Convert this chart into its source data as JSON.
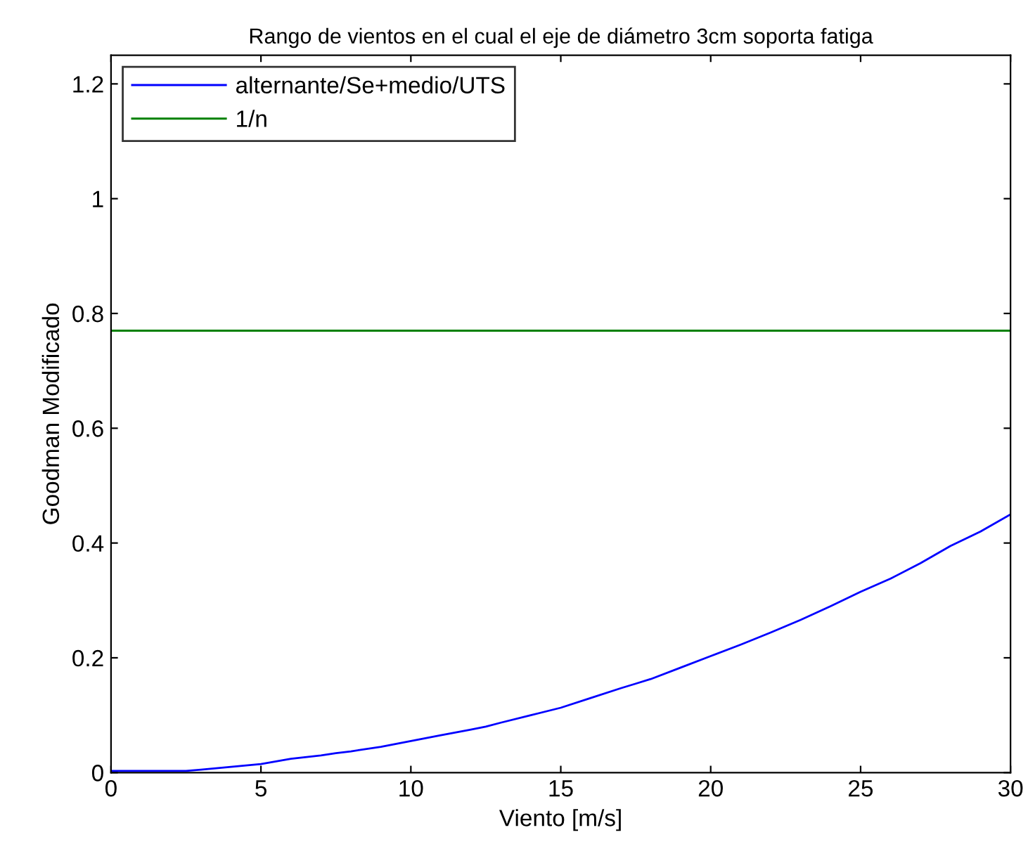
{
  "chart_data": {
    "type": "line",
    "title": "Rango de vientos en el cual el eje de diámetro 3cm soporta fatiga",
    "xlabel": "Viento [m/s]",
    "ylabel": "Goodman Modificado",
    "series": [
      {
        "name": "alternante/Se+medio/UTS",
        "color": "#0000ff",
        "x": [
          0,
          1,
          2,
          2.5,
          3,
          4,
          5,
          6,
          7,
          7.5,
          8,
          9,
          10,
          11,
          12,
          12.5,
          13,
          14,
          15,
          16,
          17,
          17.5,
          18,
          19,
          20,
          21,
          22,
          22.5,
          23,
          24,
          25,
          26,
          27,
          27.5,
          28,
          29,
          30
        ],
        "values": [
          0.003,
          0.003,
          0.003,
          0.003,
          0.005,
          0.01,
          0.015,
          0.024,
          0.03,
          0.034,
          0.037,
          0.045,
          0.055,
          0.065,
          0.075,
          0.08,
          0.087,
          0.1,
          0.113,
          0.13,
          0.147,
          0.155,
          0.163,
          0.183,
          0.203,
          0.223,
          0.244,
          0.255,
          0.266,
          0.29,
          0.315,
          0.338,
          0.365,
          0.38,
          0.395,
          0.42,
          0.45
        ]
      },
      {
        "name": "1/n",
        "color": "#008000",
        "x": [
          0,
          30
        ],
        "values": [
          0.77,
          0.77
        ]
      }
    ],
    "xlim": [
      0,
      30
    ],
    "ylim": [
      0,
      1.25
    ],
    "xticks": [
      0,
      5,
      10,
      15,
      20,
      25,
      30
    ],
    "yticks": [
      0,
      0.2,
      0.4,
      0.6,
      0.8,
      1,
      1.2
    ],
    "legend": "top left",
    "grid": false,
    "marker": "none",
    "line_style": "solid"
  }
}
